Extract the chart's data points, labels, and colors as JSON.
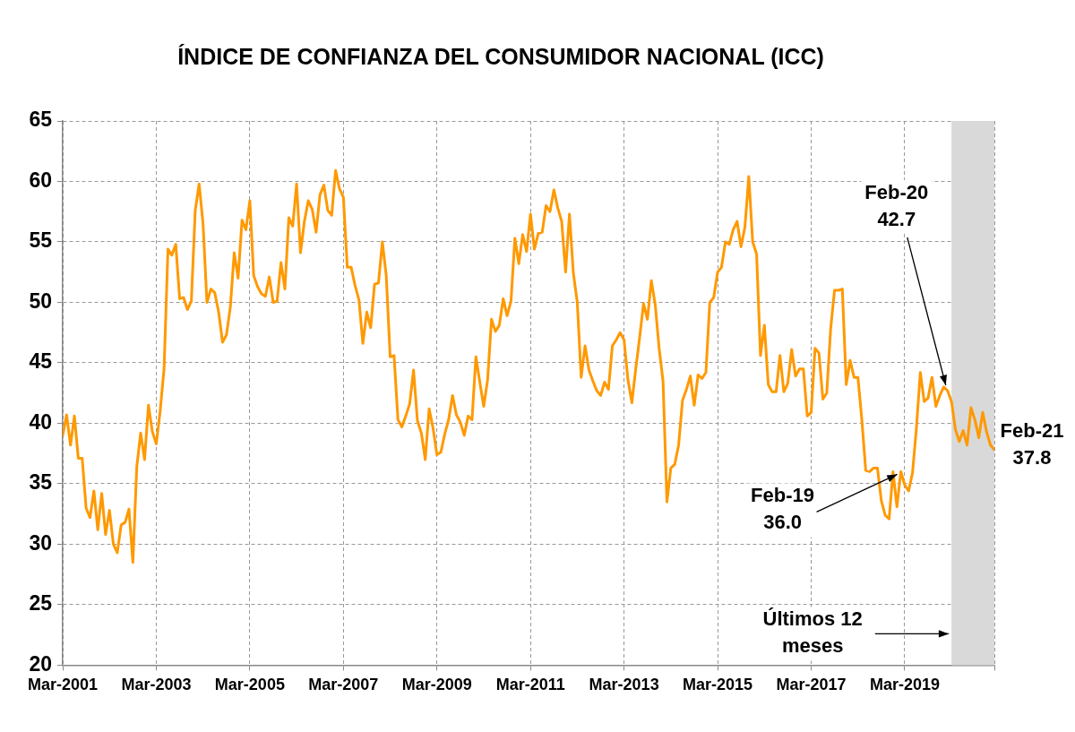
{
  "chart_data": {
    "type": "line",
    "title": "ÍNDICE DE CONFIANZA DEL CONSUMIDOR NACIONAL (ICC)",
    "x": [
      "2001-03",
      "2001-04",
      "2001-05",
      "2001-06",
      "2001-07",
      "2001-08",
      "2001-09",
      "2001-10",
      "2001-11",
      "2001-12",
      "2002-01",
      "2002-02",
      "2002-03",
      "2002-04",
      "2002-05",
      "2002-06",
      "2002-07",
      "2002-08",
      "2002-09",
      "2002-10",
      "2002-11",
      "2002-12",
      "2003-01",
      "2003-02",
      "2003-03",
      "2003-04",
      "2003-05",
      "2003-06",
      "2003-07",
      "2003-08",
      "2003-09",
      "2003-10",
      "2003-11",
      "2003-12",
      "2004-01",
      "2004-02",
      "2004-03",
      "2004-04",
      "2004-05",
      "2004-06",
      "2004-07",
      "2004-08",
      "2004-09",
      "2004-10",
      "2004-11",
      "2004-12",
      "2005-01",
      "2005-02",
      "2005-03",
      "2005-04",
      "2005-05",
      "2005-06",
      "2005-07",
      "2005-08",
      "2005-09",
      "2005-10",
      "2005-11",
      "2005-12",
      "2006-01",
      "2006-02",
      "2006-03",
      "2006-04",
      "2006-05",
      "2006-06",
      "2006-07",
      "2006-08",
      "2006-09",
      "2006-10",
      "2006-11",
      "2006-12",
      "2007-01",
      "2007-02",
      "2007-03",
      "2007-04",
      "2007-05",
      "2007-06",
      "2007-07",
      "2007-08",
      "2007-09",
      "2007-10",
      "2007-11",
      "2007-12",
      "2008-01",
      "2008-02",
      "2008-03",
      "2008-04",
      "2008-05",
      "2008-06",
      "2008-07",
      "2008-08",
      "2008-09",
      "2008-10",
      "2008-11",
      "2008-12",
      "2009-01",
      "2009-02",
      "2009-03",
      "2009-04",
      "2009-05",
      "2009-06",
      "2009-07",
      "2009-08",
      "2009-09",
      "2009-10",
      "2009-11",
      "2009-12",
      "2010-01",
      "2010-02",
      "2010-03",
      "2010-04",
      "2010-05",
      "2010-06",
      "2010-07",
      "2010-08",
      "2010-09",
      "2010-10",
      "2010-11",
      "2010-12",
      "2011-01",
      "2011-02",
      "2011-03",
      "2011-04",
      "2011-05",
      "2011-06",
      "2011-07",
      "2011-08",
      "2011-09",
      "2011-10",
      "2011-11",
      "2011-12",
      "2012-01",
      "2012-02",
      "2012-03",
      "2012-04",
      "2012-05",
      "2012-06",
      "2012-07",
      "2012-08",
      "2012-09",
      "2012-10",
      "2012-11",
      "2012-12",
      "2013-01",
      "2013-02",
      "2013-03",
      "2013-04",
      "2013-05",
      "2013-06",
      "2013-07",
      "2013-08",
      "2013-09",
      "2013-10",
      "2013-11",
      "2013-12",
      "2014-01",
      "2014-02",
      "2014-03",
      "2014-04",
      "2014-05",
      "2014-06",
      "2014-07",
      "2014-08",
      "2014-09",
      "2014-10",
      "2014-11",
      "2014-12",
      "2015-01",
      "2015-02",
      "2015-03",
      "2015-04",
      "2015-05",
      "2015-06",
      "2015-07",
      "2015-08",
      "2015-09",
      "2015-10",
      "2015-11",
      "2015-12",
      "2016-01",
      "2016-02",
      "2016-03",
      "2016-04",
      "2016-05",
      "2016-06",
      "2016-07",
      "2016-08",
      "2016-09",
      "2016-10",
      "2016-11",
      "2016-12",
      "2017-01",
      "2017-02",
      "2017-03",
      "2017-04",
      "2017-05",
      "2017-06",
      "2017-07",
      "2017-08",
      "2017-09",
      "2017-10",
      "2017-11",
      "2017-12",
      "2018-01",
      "2018-02",
      "2018-03",
      "2018-04",
      "2018-05",
      "2018-06",
      "2018-07",
      "2018-08",
      "2018-09",
      "2018-10",
      "2018-11",
      "2018-12",
      "2019-01",
      "2019-02",
      "2019-03",
      "2019-04",
      "2019-05",
      "2019-06",
      "2019-07",
      "2019-08",
      "2019-09",
      "2019-10",
      "2019-11",
      "2019-12",
      "2020-01",
      "2020-02",
      "2020-03",
      "2020-04",
      "2020-05",
      "2020-06",
      "2020-07",
      "2020-08",
      "2020-09",
      "2020-10",
      "2020-11",
      "2020-12",
      "2021-01",
      "2021-02"
    ],
    "series": [
      {
        "color": "#ff9900",
        "values": [
          39.0,
          40.7,
          38.2,
          40.6,
          37.1,
          37.1,
          33.0,
          32.2,
          34.4,
          31.2,
          34.2,
          30.8,
          32.8,
          30.0,
          29.3,
          31.6,
          31.8,
          32.9,
          28.5,
          36.4,
          39.2,
          37.0,
          41.5,
          39.3,
          38.3,
          41.0,
          44.5,
          54.4,
          53.9,
          54.8,
          50.3,
          50.4,
          49.4,
          50.1,
          57.6,
          59.8,
          56.5,
          50.0,
          51.1,
          50.8,
          49.2,
          46.7,
          47.3,
          49.6,
          54.1,
          52.0,
          56.8,
          56.0,
          58.4,
          52.2,
          51.3,
          50.7,
          50.5,
          52.1,
          50.0,
          50.1,
          53.3,
          51.1,
          57.0,
          56.3,
          59.8,
          54.1,
          56.7,
          58.4,
          57.7,
          55.8,
          58.9,
          59.7,
          57.6,
          57.2,
          60.9,
          59.4,
          58.7,
          52.9,
          52.9,
          51.4,
          50.2,
          46.6,
          49.2,
          47.9,
          51.5,
          51.6,
          55.0,
          52.2,
          45.5,
          45.6,
          40.3,
          39.7,
          40.6,
          41.6,
          44.4,
          40.2,
          39.2,
          37.0,
          41.2,
          39.6,
          37.4,
          37.6,
          39.1,
          40.3,
          42.3,
          40.7,
          40.1,
          39.0,
          40.6,
          40.3,
          45.5,
          43.4,
          41.4,
          43.6,
          48.6,
          47.6,
          48.1,
          50.3,
          48.9,
          50.1,
          55.3,
          53.2,
          55.6,
          54.2,
          57.3,
          54.4,
          55.7,
          55.8,
          58.0,
          57.5,
          59.3,
          57.8,
          56.7,
          52.5,
          57.3,
          52.4,
          50.0,
          43.8,
          46.4,
          44.4,
          43.5,
          42.7,
          42.3,
          43.4,
          42.8,
          46.4,
          46.9,
          47.5,
          46.9,
          43.6,
          41.7,
          44.5,
          47.1,
          49.9,
          48.6,
          51.8,
          49.8,
          46.2,
          43.5,
          33.5,
          36.3,
          36.6,
          38.2,
          41.9,
          42.8,
          43.9,
          41.5,
          44.0,
          43.7,
          44.2,
          50.0,
          50.4,
          52.5,
          52.9,
          55.0,
          54.8,
          56.0,
          56.7,
          54.6,
          56.2,
          60.4,
          55.0,
          54.0,
          45.6,
          48.1,
          43.2,
          42.6,
          42.6,
          45.6,
          42.6,
          43.3,
          46.1,
          43.9,
          44.5,
          44.5,
          40.6,
          40.9,
          46.2,
          45.8,
          42.0,
          42.5,
          47.8,
          51.0,
          51.0,
          51.1,
          43.2,
          45.2,
          43.8,
          43.8,
          40.3,
          36.1,
          36.0,
          36.3,
          36.3,
          33.6,
          32.4,
          32.1,
          36.0,
          33.1,
          36.0,
          34.9,
          34.4,
          35.9,
          39.6,
          44.2,
          41.8,
          42.1,
          43.8,
          41.4,
          42.3,
          43.0,
          42.7,
          41.8,
          39.5,
          38.5,
          39.4,
          38.2,
          41.3,
          40.3,
          38.8,
          40.9,
          39.3,
          38.2,
          37.8
        ]
      }
    ],
    "xlim": [
      "2001-03",
      "2021-02"
    ],
    "xticks": [
      {
        "value": "2001-03",
        "label": "Mar-2001"
      },
      {
        "value": "2003-03",
        "label": "Mar-2003"
      },
      {
        "value": "2005-03",
        "label": "Mar-2005"
      },
      {
        "value": "2007-03",
        "label": "Mar-2007"
      },
      {
        "value": "2009-03",
        "label": "Mar-2009"
      },
      {
        "value": "2011-03",
        "label": "Mar-2011"
      },
      {
        "value": "2013-03",
        "label": "Mar-2013"
      },
      {
        "value": "2015-03",
        "label": "Mar-2015"
      },
      {
        "value": "2017-03",
        "label": "Mar-2017"
      },
      {
        "value": "2019-03",
        "label": "Mar-2019"
      },
      {
        "value": "2021-02",
        "label": null
      }
    ],
    "ylim": [
      20,
      65
    ],
    "yticks": [
      20,
      25,
      30,
      35,
      40,
      45,
      50,
      55,
      60,
      65
    ],
    "grid": true,
    "marker": "none",
    "line_style": "solid",
    "bands": [
      {
        "axis": "x",
        "from": "2020-03",
        "to": "2021-02",
        "label": "Últimos 12 meses",
        "color": "#d9d9d9"
      }
    ],
    "annotations": [
      {
        "text": "Feb-20\n42.7",
        "x": "2020-02",
        "y": 42.7
      },
      {
        "text": "Feb-19\n36.0",
        "x": "2019-02",
        "y": 36.0
      },
      {
        "text": "Feb-21\n37.8",
        "x": "2021-02",
        "y": 37.8
      }
    ]
  }
}
